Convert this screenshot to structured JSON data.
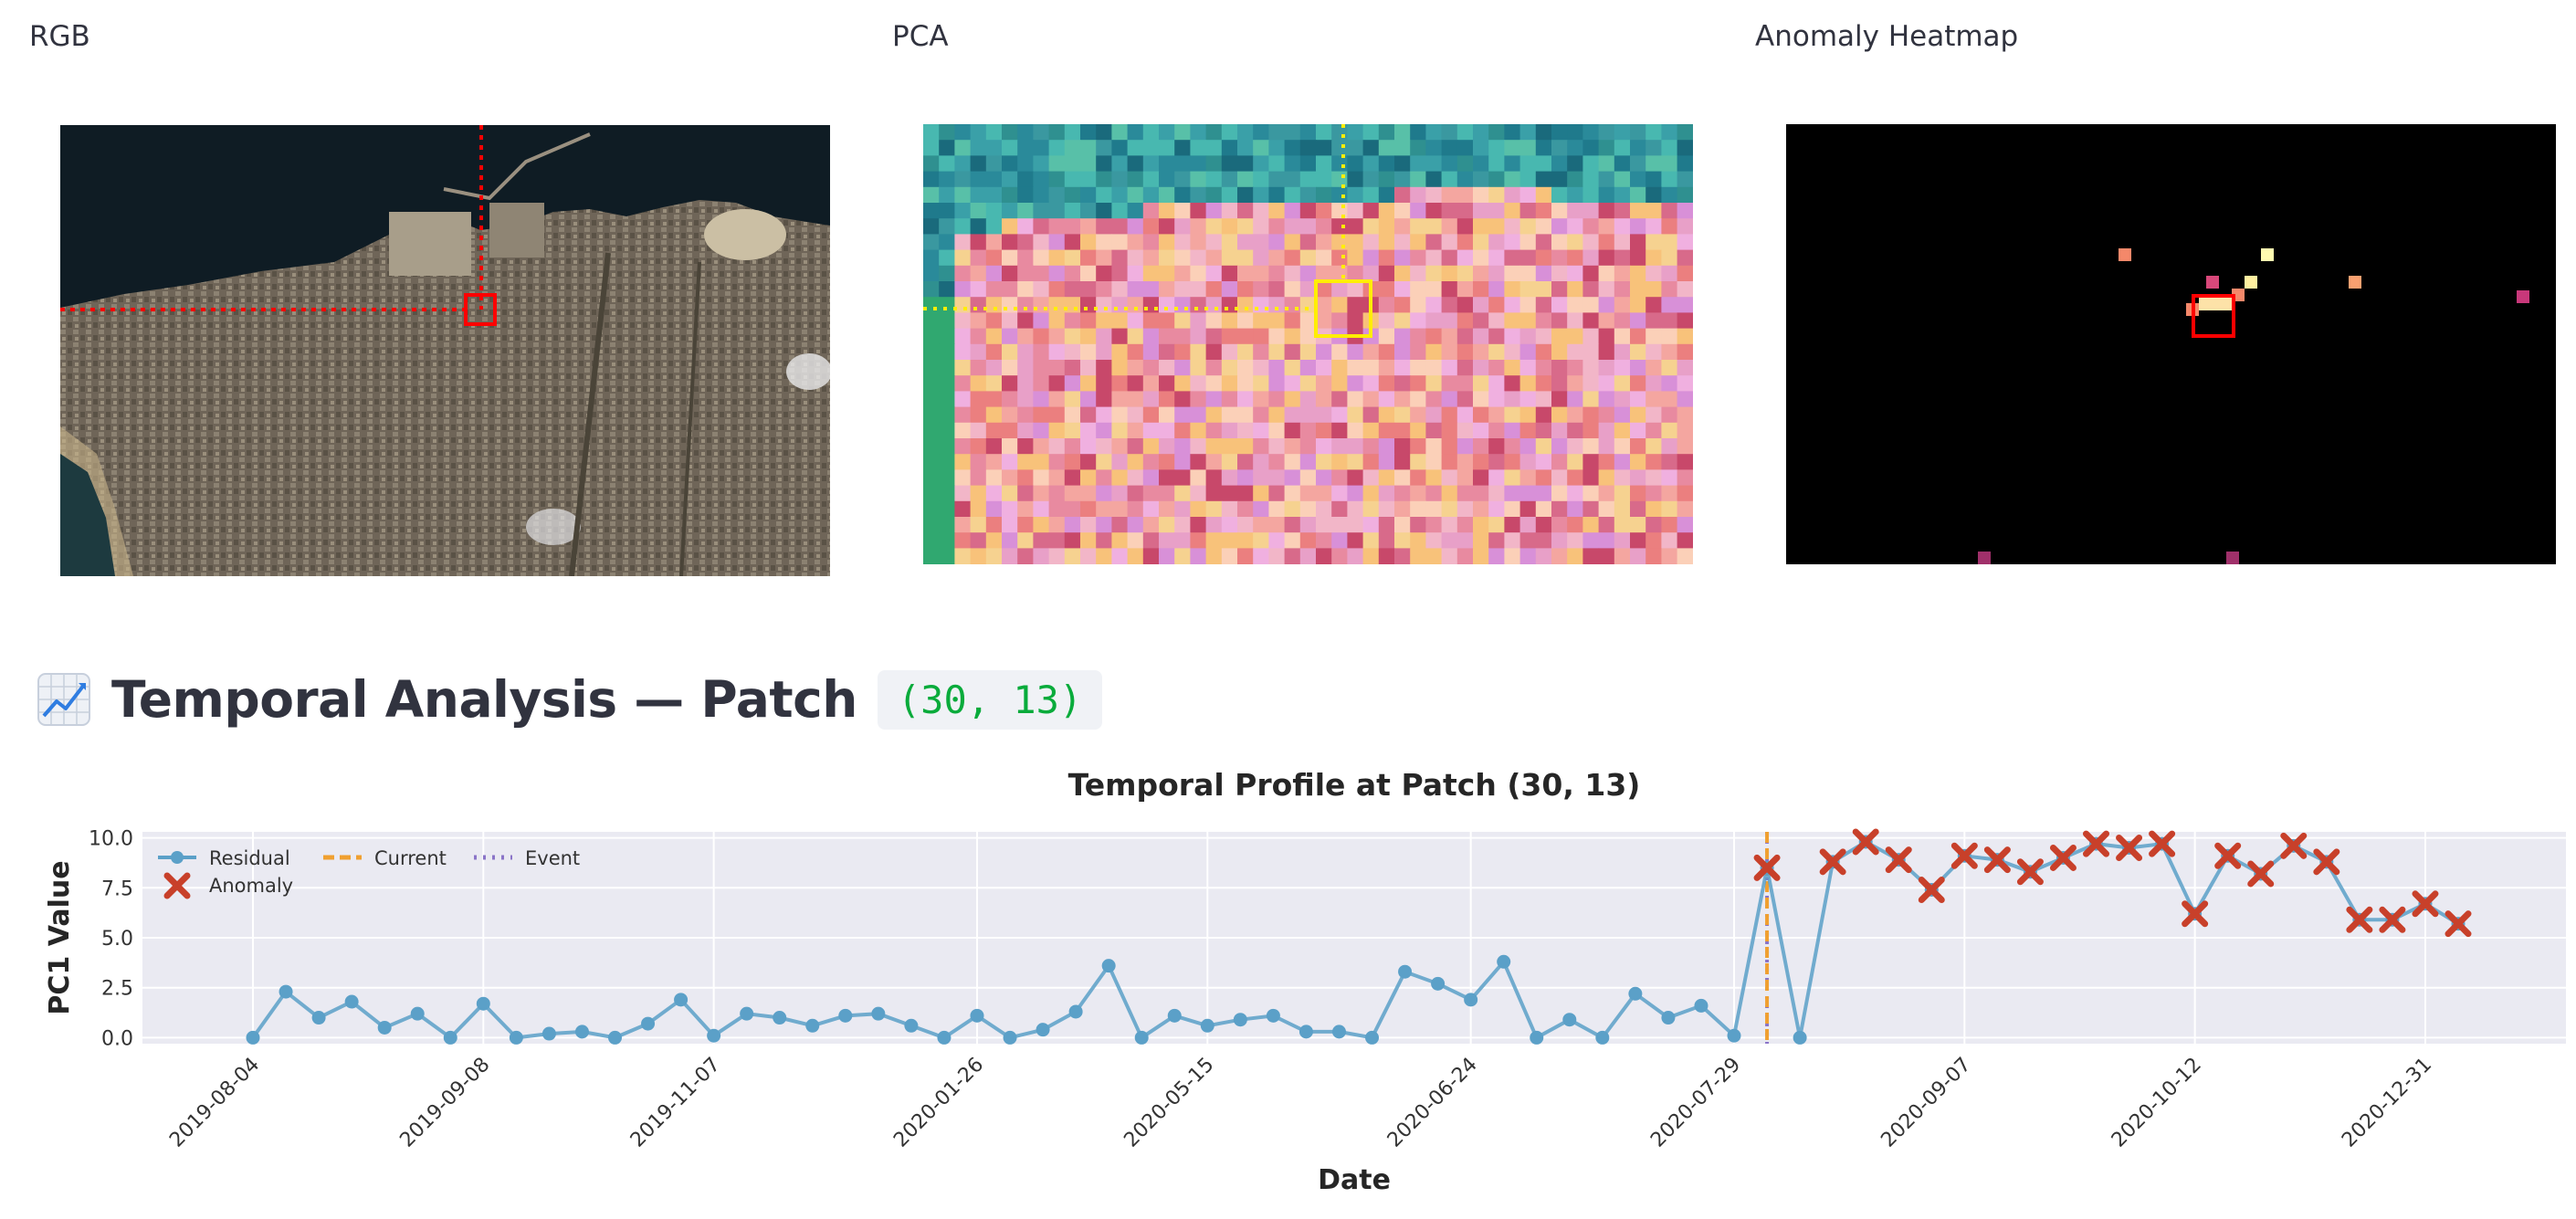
{
  "panels": {
    "rgb_label": "RGB",
    "pca_label": "PCA",
    "heatmap_label": "Anomaly Heatmap"
  },
  "section": {
    "icon": "chart-increasing-icon",
    "title": "Temporal Analysis — Patch",
    "patch_code": "(30, 13)"
  },
  "colors": {
    "residual": "#5ba0c8",
    "anomaly": "#c8402a",
    "current": "#f0a030",
    "event": "#8a74c8",
    "plot_bg": "#eaeaf2",
    "selection_rgb": "#ff0000",
    "selection_pca": "#ffee00",
    "code": "#09ab3b"
  },
  "chart_data": {
    "type": "line",
    "title": "Temporal Profile at Patch (30, 13)",
    "xlabel": "Date",
    "ylabel": "PC1 Value",
    "ylim": [
      -0.3,
      10.3
    ],
    "yticks": [
      "0.0",
      "2.5",
      "5.0",
      "7.5",
      "10.0"
    ],
    "ytick_values": [
      0,
      2.5,
      5,
      7.5,
      10
    ],
    "xticks": [
      {
        "label": "2019-08-04",
        "index": 0
      },
      {
        "label": "2019-09-08",
        "index": 7
      },
      {
        "label": "2019-11-07",
        "index": 14
      },
      {
        "label": "2020-01-26",
        "index": 22
      },
      {
        "label": "2020-05-15",
        "index": 29
      },
      {
        "label": "2020-06-24",
        "index": 37
      },
      {
        "label": "2020-07-29",
        "index": 45
      },
      {
        "label": "2020-09-07",
        "index": 52
      },
      {
        "label": "2020-10-12",
        "index": 59
      },
      {
        "label": "2020-12-31",
        "index": 66
      }
    ],
    "grid": true,
    "legend": {
      "position": "top-left",
      "entries": [
        "Residual",
        "Current",
        "Event",
        "Anomaly"
      ]
    },
    "series": [
      {
        "name": "Residual",
        "values": [
          0.0,
          2.3,
          1.0,
          1.8,
          0.5,
          1.2,
          0.0,
          1.7,
          0.0,
          0.2,
          0.3,
          0.0,
          0.7,
          1.9,
          0.1,
          1.2,
          1.0,
          0.6,
          1.1,
          1.2,
          0.6,
          0.0,
          1.1,
          0.0,
          0.4,
          1.3,
          3.6,
          0.0,
          1.1,
          0.6,
          0.9,
          1.1,
          0.3,
          0.3,
          0.0,
          3.3,
          2.7,
          1.9,
          3.8,
          0.0,
          0.9,
          0.0,
          2.2,
          1.0,
          1.6,
          0.1,
          8.5,
          0.0,
          8.8,
          9.8,
          8.9,
          7.4,
          9.1,
          8.9,
          8.3,
          9.0,
          9.7,
          9.5,
          9.7,
          6.2,
          9.1,
          8.2,
          9.6,
          8.8,
          5.9,
          5.9,
          6.7,
          5.7
        ]
      }
    ],
    "anomaly_indices": [
      46,
      48,
      49,
      50,
      51,
      52,
      53,
      54,
      55,
      56,
      57,
      58,
      59,
      60,
      61,
      62,
      63,
      64,
      65,
      66,
      67
    ],
    "current_index": 46,
    "event_index": 46
  }
}
